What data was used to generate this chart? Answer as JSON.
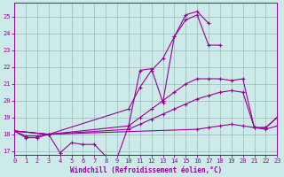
{
  "xlabel": "Windchill (Refroidissement éolien,°C)",
  "bg_color": "#cceae8",
  "line_color": "#990099",
  "grid_color": "#99bbbb",
  "xlim": [
    0,
    23
  ],
  "ylim": [
    16.8,
    25.8
  ],
  "yticks": [
    17,
    18,
    19,
    20,
    21,
    22,
    23,
    24,
    25
  ],
  "xticks": [
    0,
    1,
    2,
    3,
    4,
    5,
    6,
    7,
    8,
    9,
    10,
    11,
    12,
    13,
    14,
    15,
    16,
    17,
    18,
    19,
    20,
    21,
    22,
    23
  ],
  "line1_x": [
    0,
    1,
    2,
    3,
    4,
    5,
    6,
    7,
    8,
    9,
    10,
    11,
    12,
    13,
    14,
    15,
    16,
    17
  ],
  "line1_y": [
    18.2,
    17.8,
    17.8,
    18.0,
    16.9,
    17.5,
    17.4,
    17.4,
    16.7,
    16.6,
    18.5,
    21.8,
    21.9,
    19.9,
    23.8,
    25.1,
    25.3,
    24.6
  ],
  "line2_x": [
    0,
    3,
    10,
    11,
    12,
    13,
    14,
    15,
    16,
    17,
    18
  ],
  "line2_y": [
    18.2,
    18.0,
    19.5,
    20.8,
    21.8,
    22.5,
    23.8,
    24.8,
    25.1,
    23.3,
    23.3
  ],
  "line3_x": [
    0,
    3,
    10,
    11,
    12,
    13,
    14,
    15,
    16,
    17,
    18,
    19,
    20,
    21,
    22,
    23
  ],
  "line3_y": [
    18.2,
    18.0,
    18.5,
    19.0,
    19.5,
    20.0,
    20.5,
    21.0,
    21.3,
    21.3,
    21.3,
    21.2,
    21.3,
    18.4,
    18.4,
    19.0
  ],
  "line4_x": [
    0,
    3,
    10,
    11,
    12,
    13,
    14,
    15,
    16,
    17,
    18,
    19,
    20,
    21,
    22,
    23
  ],
  "line4_y": [
    18.2,
    18.0,
    18.3,
    18.6,
    18.9,
    19.2,
    19.5,
    19.8,
    20.1,
    20.3,
    20.5,
    20.6,
    20.5,
    18.4,
    18.3,
    18.5
  ],
  "line5_x": [
    0,
    1,
    2,
    3,
    16,
    17,
    18,
    19,
    20,
    21,
    22,
    23
  ],
  "line5_y": [
    18.2,
    17.9,
    17.9,
    18.0,
    18.3,
    18.4,
    18.5,
    18.6,
    18.5,
    18.4,
    18.4,
    19.0
  ]
}
